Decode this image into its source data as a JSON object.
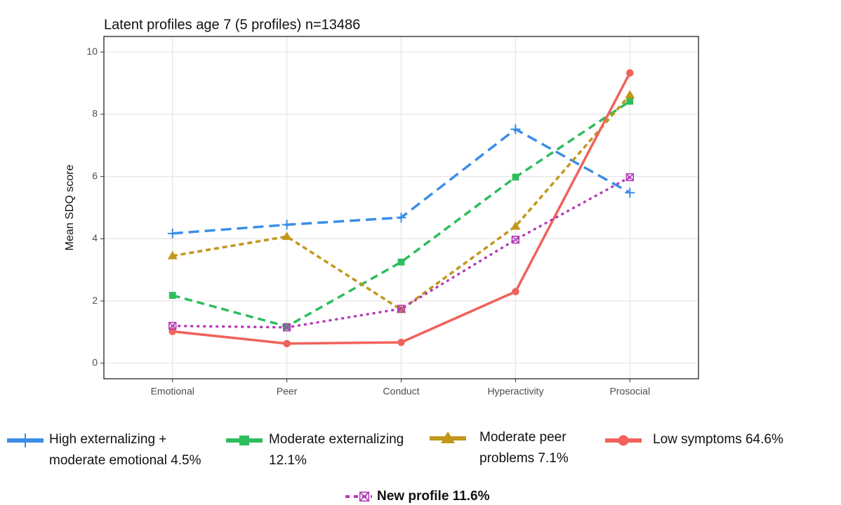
{
  "chart_data": {
    "type": "line",
    "title": "Latent profiles age 7 (5 profiles)  n=13486",
    "y_label": "Mean SDQ score",
    "categories": [
      "Emotional",
      "Peer",
      "Conduct",
      "Hyperactivity",
      "Prosocial"
    ],
    "ylim": [
      -0.5,
      10.5
    ],
    "yticks": [
      0,
      2,
      4,
      6,
      8,
      10
    ],
    "grid": true,
    "legend": "bottom",
    "series": [
      {
        "name": "High externalizing + moderate emotional 4.5%",
        "color": "#3b8ee6",
        "marker": "plus",
        "linetype": "longdash",
        "values": [
          4.17,
          4.45,
          4.68,
          7.52,
          5.48
        ]
      },
      {
        "name": "Moderate externalizing  12.1%",
        "color": "#2dbd5d",
        "marker": "square",
        "linetype": "dashed",
        "values": [
          2.18,
          1.18,
          3.25,
          5.98,
          8.42
        ]
      },
      {
        "name": "Moderate peer problems  7.1%",
        "color": "#c2971a",
        "marker": "triangle",
        "linetype": "shortdash",
        "values": [
          3.45,
          4.07,
          1.72,
          4.4,
          8.62
        ]
      },
      {
        "name": "Low symptoms 64.6%",
        "color": "#f0625b",
        "marker": "circle",
        "linetype": "solid",
        "values": [
          1.02,
          0.63,
          0.67,
          2.3,
          9.33
        ]
      },
      {
        "name": "New profile  11.6%",
        "color": "#b53cb8",
        "marker": "boxx",
        "linetype": "dotted",
        "values": [
          1.2,
          1.15,
          1.75,
          3.97,
          5.98
        ]
      }
    ]
  }
}
